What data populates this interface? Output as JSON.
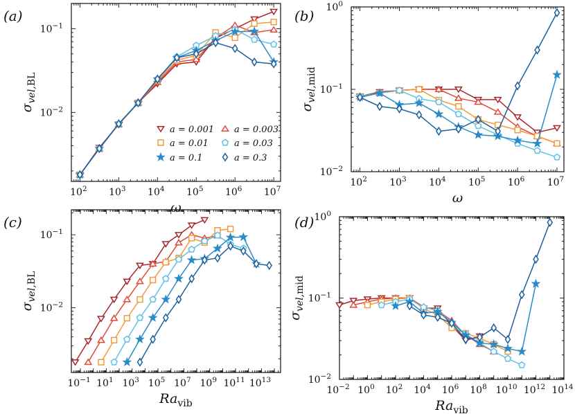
{
  "figure": {
    "series_styles": [
      {
        "name": "a = 0.001",
        "color": "#a8262b",
        "marker": "triangle-down"
      },
      {
        "name": "a = 0.003",
        "color": "#e04a3c",
        "marker": "triangle-up"
      },
      {
        "name": "a = 0.01",
        "color": "#f39a3b",
        "marker": "square"
      },
      {
        "name": "a = 0.03",
        "color": "#5fc1e6",
        "marker": "pentagon"
      },
      {
        "name": "a = 0.1",
        "color": "#2a8bc9",
        "marker": "star"
      },
      {
        "name": "a = 0.3",
        "color": "#1c5f9b",
        "marker": "diamond"
      }
    ]
  },
  "chart_data": [
    {
      "panel_label": "(a)",
      "type": "line",
      "xscale": "log",
      "yscale": "log",
      "xlabel": "ω",
      "ylabel": "σ_{vel,BL}",
      "xlim": [
        60,
        15000000
      ],
      "ylim": [
        0.0015,
        0.2
      ],
      "x_ticks": [
        100,
        1000,
        10000,
        100000,
        1000000,
        10000000
      ],
      "x_tick_labels": [
        [
          "10",
          "2"
        ],
        [
          "10",
          "3"
        ],
        [
          "10",
          "4"
        ],
        [
          "10",
          "5"
        ],
        [
          "10",
          "6"
        ],
        [
          "10",
          "7"
        ]
      ],
      "y_ticks": [
        0.01,
        0.1
      ],
      "y_tick_labels": [
        [
          "10",
          "−2"
        ],
        [
          "10",
          "−1"
        ]
      ],
      "legend": {
        "entries": [
          "a = 0.001",
          "a = 0.003",
          "a = 0.01",
          "a = 0.03",
          "a = 0.1",
          "a = 0.3"
        ],
        "location": "lower-right",
        "columns": 2
      },
      "series": [
        {
          "name": "a = 0.001",
          "x": [
            100,
            316,
            1000,
            3162,
            10000,
            31623,
            100000,
            316228,
            1000000,
            3162278,
            10000000
          ],
          "y": [
            0.0018,
            0.0038,
            0.0072,
            0.013,
            0.022,
            0.038,
            0.04,
            0.077,
            0.1,
            0.13,
            0.16
          ]
        },
        {
          "name": "a = 0.003",
          "x": [
            100,
            316,
            1000,
            3162,
            10000,
            31623,
            100000,
            316228,
            1000000,
            3162278,
            10000000
          ],
          "y": [
            0.0018,
            0.0037,
            0.0072,
            0.013,
            0.023,
            0.04,
            0.043,
            0.078,
            0.11,
            0.09,
            0.097
          ]
        },
        {
          "name": "a = 0.01",
          "x": [
            100,
            316,
            1000,
            3162,
            10000,
            31623,
            100000,
            316228,
            1000000,
            3162278,
            10000000
          ],
          "y": [
            0.0018,
            0.0037,
            0.0072,
            0.013,
            0.024,
            0.042,
            0.048,
            0.09,
            0.078,
            0.115,
            0.12
          ]
        },
        {
          "name": "a = 0.03",
          "x": [
            100,
            316,
            1000,
            3162,
            10000,
            31623,
            100000,
            316228,
            1000000,
            3162278,
            10000000
          ],
          "y": [
            0.0018,
            0.0037,
            0.0073,
            0.013,
            0.025,
            0.046,
            0.063,
            0.082,
            0.098,
            0.074,
            0.065
          ]
        },
        {
          "name": "a = 0.1",
          "x": [
            100,
            316,
            1000,
            3162,
            10000,
            31623,
            100000,
            316228,
            1000000,
            3162278,
            10000000
          ],
          "y": [
            0.0018,
            0.0037,
            0.0073,
            0.013,
            0.025,
            0.045,
            0.055,
            0.072,
            0.092,
            0.093,
            0.04
          ]
        },
        {
          "name": "a = 0.3",
          "x": [
            100,
            316,
            1000,
            3162,
            10000,
            31623,
            100000,
            316228,
            1000000,
            3162278,
            10000000
          ],
          "y": [
            0.0018,
            0.0037,
            0.0073,
            0.013,
            0.025,
            0.045,
            0.05,
            0.068,
            0.058,
            0.04,
            0.038
          ]
        }
      ]
    },
    {
      "panel_label": "(b)",
      "type": "line",
      "xscale": "log",
      "yscale": "log",
      "xlabel": "ω",
      "ylabel": "σ_{vel,mid}",
      "xlim": [
        60,
        15000000
      ],
      "ylim": [
        0.01,
        1.0
      ],
      "x_ticks": [
        100,
        1000,
        10000,
        100000,
        1000000,
        10000000
      ],
      "x_tick_labels": [
        [
          "10",
          "2"
        ],
        [
          "10",
          "3"
        ],
        [
          "10",
          "4"
        ],
        [
          "10",
          "5"
        ],
        [
          "10",
          "6"
        ],
        [
          "10",
          "7"
        ]
      ],
      "y_ticks": [
        0.01,
        0.1,
        1
      ],
      "y_tick_labels": [
        [
          "10",
          "−2"
        ],
        [
          "10",
          "−1"
        ],
        [
          "10",
          "0"
        ]
      ],
      "series": [
        {
          "name": "a = 0.001",
          "x": [
            100,
            316,
            1000,
            3162,
            10000,
            31623,
            100000,
            316228,
            1000000,
            3162278,
            10000000
          ],
          "y": [
            0.082,
            0.093,
            0.097,
            0.1,
            0.1,
            0.1,
            0.075,
            0.075,
            0.046,
            0.03,
            0.034
          ]
        },
        {
          "name": "a = 0.003",
          "x": [
            100,
            316,
            1000,
            3162,
            10000,
            31623,
            100000,
            316228,
            1000000,
            3162278,
            10000000
          ],
          "y": [
            0.082,
            0.09,
            0.097,
            0.1,
            0.1,
            0.078,
            0.07,
            0.053,
            0.035,
            0.027,
            0.022
          ]
        },
        {
          "name": "a = 0.01",
          "x": [
            100,
            316,
            1000,
            3162,
            10000,
            31623,
            100000,
            316228,
            1000000,
            3162278,
            10000000
          ],
          "y": [
            0.082,
            0.09,
            0.097,
            0.1,
            0.074,
            0.062,
            0.043,
            0.037,
            0.032,
            0.027,
            0.022
          ]
        },
        {
          "name": "a = 0.03",
          "x": [
            100,
            316,
            1000,
            3162,
            10000,
            31623,
            100000,
            316228,
            1000000,
            3162278,
            10000000
          ],
          "y": [
            0.082,
            0.09,
            0.097,
            0.077,
            0.07,
            0.05,
            0.036,
            0.028,
            0.022,
            0.018,
            0.015
          ]
        },
        {
          "name": "a = 0.1",
          "x": [
            100,
            316,
            1000,
            3162,
            10000,
            31623,
            100000,
            316228,
            1000000,
            3162278,
            10000000
          ],
          "y": [
            0.08,
            0.09,
            0.065,
            0.068,
            0.05,
            0.035,
            0.028,
            0.027,
            0.024,
            0.022,
            0.15
          ]
        },
        {
          "name": "a = 0.3",
          "x": [
            100,
            316,
            1000,
            3162,
            10000,
            31623,
            100000,
            316228,
            1000000,
            3162278,
            10000000
          ],
          "y": [
            0.08,
            0.062,
            0.058,
            0.049,
            0.031,
            0.033,
            0.043,
            0.031,
            0.11,
            0.3,
            0.85
          ]
        }
      ]
    },
    {
      "panel_label": "(c)",
      "type": "line",
      "xscale": "log",
      "yscale": "log",
      "xlabel": "Ra_vib",
      "ylabel": "σ_{vel,BL}",
      "xlim": [
        0.02,
        300000000000000
      ],
      "ylim": [
        0.0013,
        0.22
      ],
      "x_ticks": [
        0.1,
        10,
        1000,
        100000,
        10000000,
        1000000000,
        100000000000,
        10000000000000
      ],
      "x_tick_labels": [
        [
          "10",
          "−1"
        ],
        [
          "10",
          "1"
        ],
        [
          "10",
          "3"
        ],
        [
          "10",
          "5"
        ],
        [
          "10",
          "7"
        ],
        [
          "10",
          "9"
        ],
        [
          "10",
          "11"
        ],
        [
          "10",
          "13"
        ]
      ],
      "y_ticks": [
        0.01,
        0.1
      ],
      "y_tick_labels": [
        [
          "10",
          "−2"
        ],
        [
          "10",
          "−1"
        ]
      ],
      "series": [
        {
          "name": "a = 0.001",
          "x": [
            0.04,
            0.4,
            4,
            40,
            400,
            4000,
            40000,
            400000,
            4000000,
            40000000,
            400000000
          ],
          "y": [
            0.0018,
            0.0035,
            0.0071,
            0.013,
            0.023,
            0.038,
            0.04,
            0.075,
            0.1,
            0.135,
            0.16
          ]
        },
        {
          "name": "a = 0.003",
          "x": [
            0.4,
            4,
            40,
            400,
            4000,
            40000,
            400000,
            4000000,
            40000000,
            400000000,
            4000000000
          ],
          "y": [
            0.0018,
            0.0036,
            0.0072,
            0.013,
            0.023,
            0.04,
            0.043,
            0.078,
            0.1,
            0.09,
            0.097
          ]
        },
        {
          "name": "a = 0.01",
          "x": [
            4,
            40,
            400,
            4000,
            40000,
            400000,
            4000000,
            40000000,
            400000000,
            4000000000,
            40000000000
          ],
          "y": [
            0.0018,
            0.0036,
            0.0072,
            0.013,
            0.024,
            0.042,
            0.048,
            0.09,
            0.078,
            0.115,
            0.12
          ]
        },
        {
          "name": "a = 0.03",
          "x": [
            40,
            400,
            4000,
            40000,
            400000,
            4000000,
            40000000,
            400000000,
            4000000000,
            40000000000,
            400000000000
          ],
          "y": [
            0.0018,
            0.0037,
            0.0073,
            0.013,
            0.025,
            0.046,
            0.063,
            0.082,
            0.098,
            0.074,
            0.065
          ]
        },
        {
          "name": "a = 0.1",
          "x": [
            400,
            4000,
            40000,
            400000,
            4000000,
            40000000,
            400000000,
            4000000000,
            40000000000,
            400000000000,
            4000000000000
          ],
          "y": [
            0.0018,
            0.0037,
            0.0073,
            0.013,
            0.025,
            0.045,
            0.047,
            0.065,
            0.092,
            0.093,
            0.04
          ]
        },
        {
          "name": "a = 0.3",
          "x": [
            4000,
            40000,
            400000,
            4000000,
            40000000,
            400000000,
            4000000000,
            40000000000,
            400000000000,
            4000000000000,
            40000000000000
          ],
          "y": [
            0.0018,
            0.0037,
            0.0073,
            0.013,
            0.025,
            0.045,
            0.048,
            0.07,
            0.06,
            0.04,
            0.038
          ]
        }
      ]
    },
    {
      "panel_label": "(d)",
      "type": "line",
      "xscale": "log",
      "yscale": "log",
      "xlabel": "Ra_vib",
      "ylabel": "σ_{vel,mid}",
      "xlim": [
        0.01,
        100000000000000
      ],
      "ylim": [
        0.01,
        1.0
      ],
      "x_ticks": [
        0.01,
        1,
        100,
        10000,
        1000000,
        100000000,
        10000000000,
        1000000000000,
        100000000000000
      ],
      "x_tick_labels": [
        [
          "10",
          "−2"
        ],
        [
          "10",
          "0"
        ],
        [
          "10",
          "2"
        ],
        [
          "10",
          "4"
        ],
        [
          "10",
          "6"
        ],
        [
          "10",
          "8"
        ],
        [
          "10",
          "10"
        ],
        [
          "10",
          "12"
        ],
        [
          "10",
          "14"
        ]
      ],
      "y_ticks": [
        0.01,
        0.1,
        1
      ],
      "y_tick_labels": [
        [
          "10",
          "−2"
        ],
        [
          "10",
          "−1"
        ],
        [
          "10",
          "0"
        ]
      ],
      "series": [
        {
          "name": "a = 0.001",
          "x": [
            0.01,
            0.1,
            1,
            10,
            100,
            1000,
            10000,
            100000,
            1000000,
            10000000,
            100000000
          ],
          "y": [
            0.082,
            0.093,
            0.097,
            0.1,
            0.1,
            0.1,
            0.075,
            0.075,
            0.046,
            0.03,
            0.034
          ]
        },
        {
          "name": "a = 0.003",
          "x": [
            0.1,
            1,
            10,
            100,
            1000,
            10000,
            100000,
            1000000,
            10000000,
            100000000,
            1000000000
          ],
          "y": [
            0.082,
            0.09,
            0.097,
            0.1,
            0.1,
            0.078,
            0.07,
            0.053,
            0.035,
            0.027,
            0.022
          ]
        },
        {
          "name": "a = 0.01",
          "x": [
            1,
            10,
            100,
            1000,
            10000,
            100000,
            1000000,
            10000000,
            100000000,
            1000000000,
            10000000000
          ],
          "y": [
            0.082,
            0.09,
            0.097,
            0.1,
            0.074,
            0.062,
            0.043,
            0.037,
            0.032,
            0.027,
            0.022
          ]
        },
        {
          "name": "a = 0.03",
          "x": [
            10,
            100,
            1000,
            10000,
            100000,
            1000000,
            10000000,
            100000000,
            1000000000,
            10000000000,
            100000000000
          ],
          "y": [
            0.082,
            0.09,
            0.097,
            0.077,
            0.07,
            0.05,
            0.036,
            0.028,
            0.022,
            0.018,
            0.015
          ]
        },
        {
          "name": "a = 0.1",
          "x": [
            100,
            1000,
            10000,
            100000,
            1000000,
            10000000,
            100000000,
            1000000000,
            10000000000,
            100000000000,
            1000000000000
          ],
          "y": [
            0.08,
            0.09,
            0.065,
            0.068,
            0.05,
            0.035,
            0.028,
            0.027,
            0.024,
            0.022,
            0.15
          ]
        },
        {
          "name": "a = 0.3",
          "x": [
            1000,
            10000,
            100000,
            1000000,
            10000000,
            100000000,
            1000000000,
            10000000000,
            100000000000,
            1000000000000,
            10000000000000
          ],
          "y": [
            0.08,
            0.062,
            0.058,
            0.049,
            0.031,
            0.033,
            0.043,
            0.031,
            0.11,
            0.3,
            0.85
          ]
        }
      ]
    }
  ]
}
